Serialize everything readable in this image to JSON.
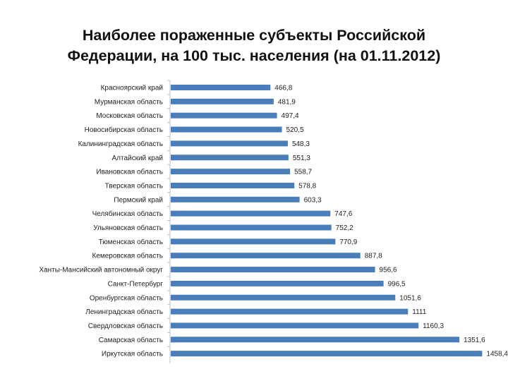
{
  "title": {
    "line1": "Наиболее пораженные субъекты Российской",
    "line2": "Федерации, на 100 тыс. населения (на 01.11.2012)"
  },
  "chart_data": {
    "type": "bar",
    "orientation": "horizontal",
    "title": "Наиболее пораженные субъекты Российской Федерации, на 100 тыс. населения (на 01.11.2012)",
    "categories": [
      "Красноярский край",
      "Мурманская область",
      "Московская область",
      "Новосибирская область",
      "Калининградская область",
      "Алтайский край",
      "Ивановская область",
      "Тверская область",
      "Пермский край",
      "Челябинская область",
      "Ульяновская область",
      "Тюменская область",
      "Кемеровская область",
      "Ханты-Мансийский автономный округ",
      "Санкт-Петербург",
      "Оренбургская область",
      "Ленинградская область",
      "Свердловская область",
      "Самарская область",
      "Иркутская область"
    ],
    "values": [
      466.8,
      481.9,
      497.4,
      520.5,
      548.3,
      551.3,
      558.7,
      578.8,
      603.3,
      747.6,
      752.2,
      770.9,
      887.8,
      956.6,
      996.5,
      1051.6,
      1111,
      1160.3,
      1351.6,
      1458.4
    ],
    "value_labels": [
      "466,8",
      "481,9",
      "497,4",
      "520,5",
      "548,3",
      "551,3",
      "558,7",
      "578,8",
      "603,3",
      "747,6",
      "752,2",
      "770,9",
      "887,8",
      "956,6",
      "996,5",
      "1051,6",
      "1111",
      "1160,3",
      "1351,6",
      "1458,4"
    ],
    "xlim": [
      0,
      1500
    ],
    "grid": false,
    "legend": "none",
    "bar_color": "#4a7ebb"
  }
}
